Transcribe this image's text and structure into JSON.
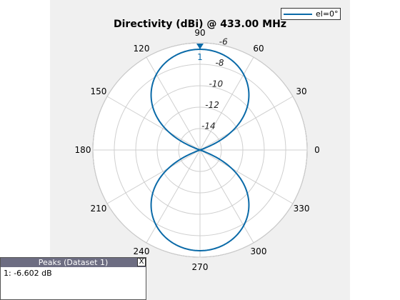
{
  "chart_data": {
    "type": "polar",
    "title": "Directivity (dBi) @ 433.00 MHz",
    "angle_ticks": [
      "0",
      "30",
      "60",
      "90",
      "120",
      "150",
      "180",
      "210",
      "240",
      "270",
      "300",
      "330"
    ],
    "angle_tick_values_deg": [
      0,
      30,
      60,
      90,
      120,
      150,
      180,
      210,
      240,
      270,
      300,
      330
    ],
    "radial_tick_labels": [
      "-14",
      "-12",
      "-10",
      "-8",
      "-6"
    ],
    "radial_tick_values": [
      -14,
      -12,
      -10,
      -8,
      -6
    ],
    "rlim": [
      -16,
      -6
    ],
    "marker": {
      "label": "1",
      "angle_deg": 90,
      "value": -6.602
    },
    "series": [
      {
        "name": "el=0°",
        "color": "#0a6aa8",
        "peak_db": -6.602,
        "pattern": "dipole, peak at 90 and 270 degrees, null at 0 and 180 degrees"
      }
    ],
    "legend_position": "top-right",
    "grid": true
  },
  "peaks_panel": {
    "title": "Peaks (Dataset 1)",
    "close_label": "X",
    "rows": [
      "1: -6.602 dB"
    ]
  }
}
